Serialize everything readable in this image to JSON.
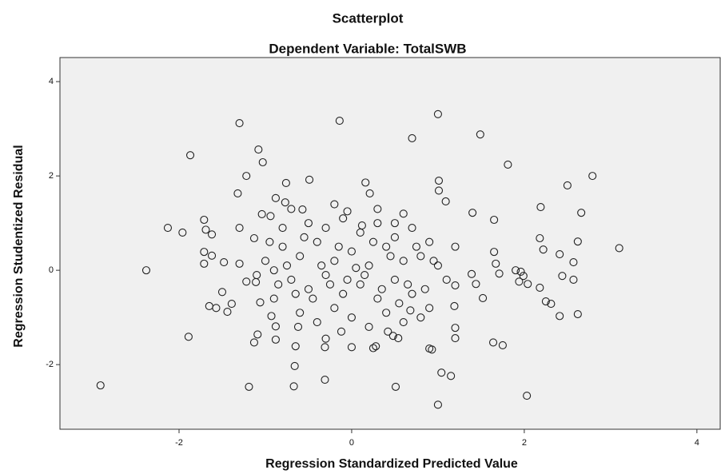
{
  "chart_data": {
    "type": "scatter",
    "title": "Scatterplot",
    "subtitle": "Dependent Variable: TotalSWB",
    "x_label": "Regression Standardized Predicted Value",
    "y_label": "Regression Studentized Residual",
    "xlim": [
      -3.38,
      4.27
    ],
    "ylim": [
      -3.37,
      4.51
    ],
    "xticks": [
      -2,
      0,
      2,
      4
    ],
    "yticks": [
      -2,
      0,
      2,
      4
    ],
    "grid": false,
    "color": "#222222",
    "x": [
      -2.91,
      -2.38,
      -2.13,
      -1.96,
      -1.87,
      -1.89,
      -1.3,
      -1.19,
      -1.08,
      -1.03,
      -1.22,
      -1.32,
      -0.14,
      1.0,
      0.7,
      1.49,
      1.81,
      2.5,
      2.79,
      2.66,
      2.19,
      3.1,
      1.65,
      1.4,
      1.01,
      1.01,
      1.09,
      0.16,
      0.21,
      -0.49,
      -0.76,
      -0.57,
      -0.67,
      -0.31,
      -0.66,
      0.51,
      1.0,
      1.04,
      1.15,
      2.03,
      0.9,
      1.64,
      1.75,
      2.62,
      2.41,
      2.57,
      2.57,
      2.62,
      2.41,
      2.18,
      2.22,
      2.44,
      2.25,
      2.31,
      2.18,
      2.04,
      1.9,
      1.96,
      1.99,
      1.94,
      1.65,
      1.67,
      1.71,
      1.52,
      1.44,
      1.39,
      1.2,
      1.19,
      1.2,
      1.2,
      0.93,
      0.54,
      0.48,
      0.28,
      0,
      -0.31,
      -0.65,
      -0.88,
      -1.13,
      -1.09,
      -1.39,
      -1.65,
      -1.57,
      -1.44,
      -1.5,
      -1.71,
      -1.71,
      -1.69,
      -1.71,
      -1.62,
      -1.62,
      -1.48,
      -1.3,
      -1.3,
      -1.13,
      -1.04,
      -0.94,
      -0.88,
      -0.77,
      -1.22,
      -1.11,
      -1.06,
      -0.93,
      -0.88,
      -0.8,
      -0.6,
      -0.4,
      -0.2,
      0,
      0.2,
      0.4,
      0.6,
      0.8,
      -0.7,
      -0.5,
      -0.3,
      -0.1,
      0.1,
      0.3,
      0.5,
      0.7,
      0.9,
      -0.9,
      -0.6,
      -0.4,
      -0.2,
      0,
      0.2,
      0.4,
      0.6,
      0.8,
      -0.8,
      -0.5,
      -0.3,
      -0.1,
      0.1,
      0.3,
      0.5,
      0.7,
      0.9,
      -1.0,
      -1.1,
      -0.9,
      1.0,
      1.1,
      1.2,
      -0.7,
      -0.2,
      0.6,
      0.3,
      -0.35,
      0.05,
      0.15,
      -0.05,
      0.45,
      -0.55,
      0.25,
      -0.25,
      0.65,
      -0.75,
      0.85,
      0.55,
      -0.45,
      -0.15,
      0.35,
      -0.65,
      0.75,
      -0.85,
      0.95,
      -0.95,
      0.12,
      -0.12,
      0.42,
      -0.62,
      0.68,
      -0.3,
      0.25,
      -0.05,
      0.5
    ],
    "values": [
      -2.44,
      0,
      0.9,
      0.8,
      2.44,
      -1.41,
      3.12,
      -2.47,
      2.56,
      2.29,
      2.0,
      1.63,
      3.17,
      3.31,
      2.8,
      2.88,
      2.24,
      1.8,
      2.0,
      1.22,
      1.34,
      0.47,
      1.07,
      1.22,
      1.9,
      1.69,
      1.46,
      1.86,
      1.63,
      1.92,
      1.85,
      1.29,
      -2.46,
      -2.32,
      -2.03,
      -2.47,
      -2.85,
      -2.17,
      -2.24,
      -2.66,
      -1.66,
      -1.53,
      -1.59,
      -0.93,
      -0.97,
      -0.2,
      0.17,
      0.61,
      0.34,
      0.68,
      0.44,
      -0.12,
      -0.66,
      -0.71,
      -0.37,
      -0.29,
      0,
      -0.03,
      -0.12,
      -0.24,
      0.39,
      0.14,
      -0.07,
      -0.59,
      -0.29,
      -0.08,
      -0.32,
      -0.76,
      -1.22,
      -1.44,
      -1.68,
      -1.44,
      -1.39,
      -1.61,
      -1.63,
      -1.63,
      -1.61,
      -1.47,
      -1.53,
      -1.36,
      -0.71,
      -0.76,
      -0.8,
      -0.88,
      -0.46,
      0.14,
      0.39,
      0.86,
      1.07,
      0.76,
      0.31,
      0.17,
      0.14,
      0.9,
      0.68,
      1.19,
      1.15,
      1.53,
      1.44,
      -0.24,
      -0.25,
      -0.68,
      -0.97,
      -1.19,
      0.5,
      0.3,
      0.6,
      0.2,
      0.4,
      0.1,
      0.5,
      0.2,
      0.3,
      -0.2,
      -0.4,
      -0.1,
      -0.5,
      -0.3,
      -0.6,
      -0.2,
      -0.5,
      -0.8,
      -0.6,
      -0.9,
      -1.1,
      -0.8,
      -1.0,
      -1.2,
      -0.9,
      -1.1,
      -1.0,
      0.9,
      1.0,
      0.9,
      1.1,
      0.8,
      1.0,
      0.7,
      0.9,
      0.6,
      0.2,
      -0.1,
      0.0,
      0.1,
      -0.2,
      0.5,
      1.3,
      1.4,
      1.2,
      1.3,
      0.1,
      0.05,
      -0.1,
      -0.2,
      0.3,
      0.7,
      0.6,
      -0.3,
      -0.3,
      0.1,
      -0.4,
      -0.7,
      -0.6,
      0.5,
      -0.4,
      -0.5,
      0.5,
      -0.3,
      0.2,
      0.6,
      0.95,
      -1.3,
      -1.3,
      -1.2,
      -0.85,
      -1.45,
      -1.65,
      1.25,
      1.0
    ]
  }
}
